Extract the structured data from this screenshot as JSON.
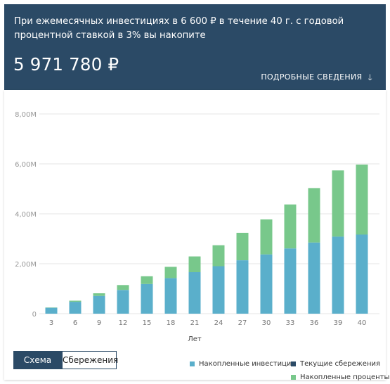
{
  "header": {
    "summary": "При ежемесячных инвестициях в 6 600 ₽ в течение 40 г. с годовой процентной ставкой в 3% вы накопите",
    "amount": "5 971 780 ₽",
    "details_label": "ПОДРОБНЫЕ СВЕДЕНИЯ",
    "details_icon": "arrow-down-icon"
  },
  "tabs": {
    "schema_label": "Схема",
    "savings_label": "Сбережения"
  },
  "colors": {
    "header_bg": "#2b4a66",
    "invested": "#5aafcb",
    "current": "#2b4a66",
    "interest": "#78c88b"
  },
  "chart_data": {
    "type": "bar",
    "stacked": true,
    "title": "",
    "xlabel": "Лет",
    "ylabel": "",
    "x": [
      3,
      6,
      9,
      12,
      15,
      18,
      21,
      24,
      27,
      30,
      33,
      36,
      39,
      40
    ],
    "ylim": [
      0,
      8000000
    ],
    "yticks": [
      0,
      2000000,
      4000000,
      6000000,
      8000000
    ],
    "ytick_labels": [
      "0",
      "2,00M",
      "4,00M",
      "6,00M",
      "8,00M"
    ],
    "grid": true,
    "series": [
      {
        "name": "Накопленные инвестиции",
        "color": "#5aafcb",
        "values": [
          237600,
          475200,
          712800,
          950400,
          1188000,
          1425600,
          1663200,
          1900800,
          2138400,
          2376000,
          2613600,
          2851200,
          3088800,
          3168000
        ]
      },
      {
        "name": "Накопленные проценты",
        "color": "#78c88b",
        "values": [
          10900,
          45000,
          105000,
          195000,
          310000,
          450000,
          630000,
          840000,
          1100000,
          1400000,
          1760000,
          2180000,
          2650000,
          2803780
        ]
      }
    ],
    "legend": [
      {
        "name": "Накопленные инвестиции",
        "color": "#5aafcb"
      },
      {
        "name": "Текущие сбережения",
        "color": "#2b4a66"
      },
      {
        "name": "Накопленные проценты",
        "color": "#78c88b"
      }
    ],
    "legend_position": "bottom-right"
  }
}
